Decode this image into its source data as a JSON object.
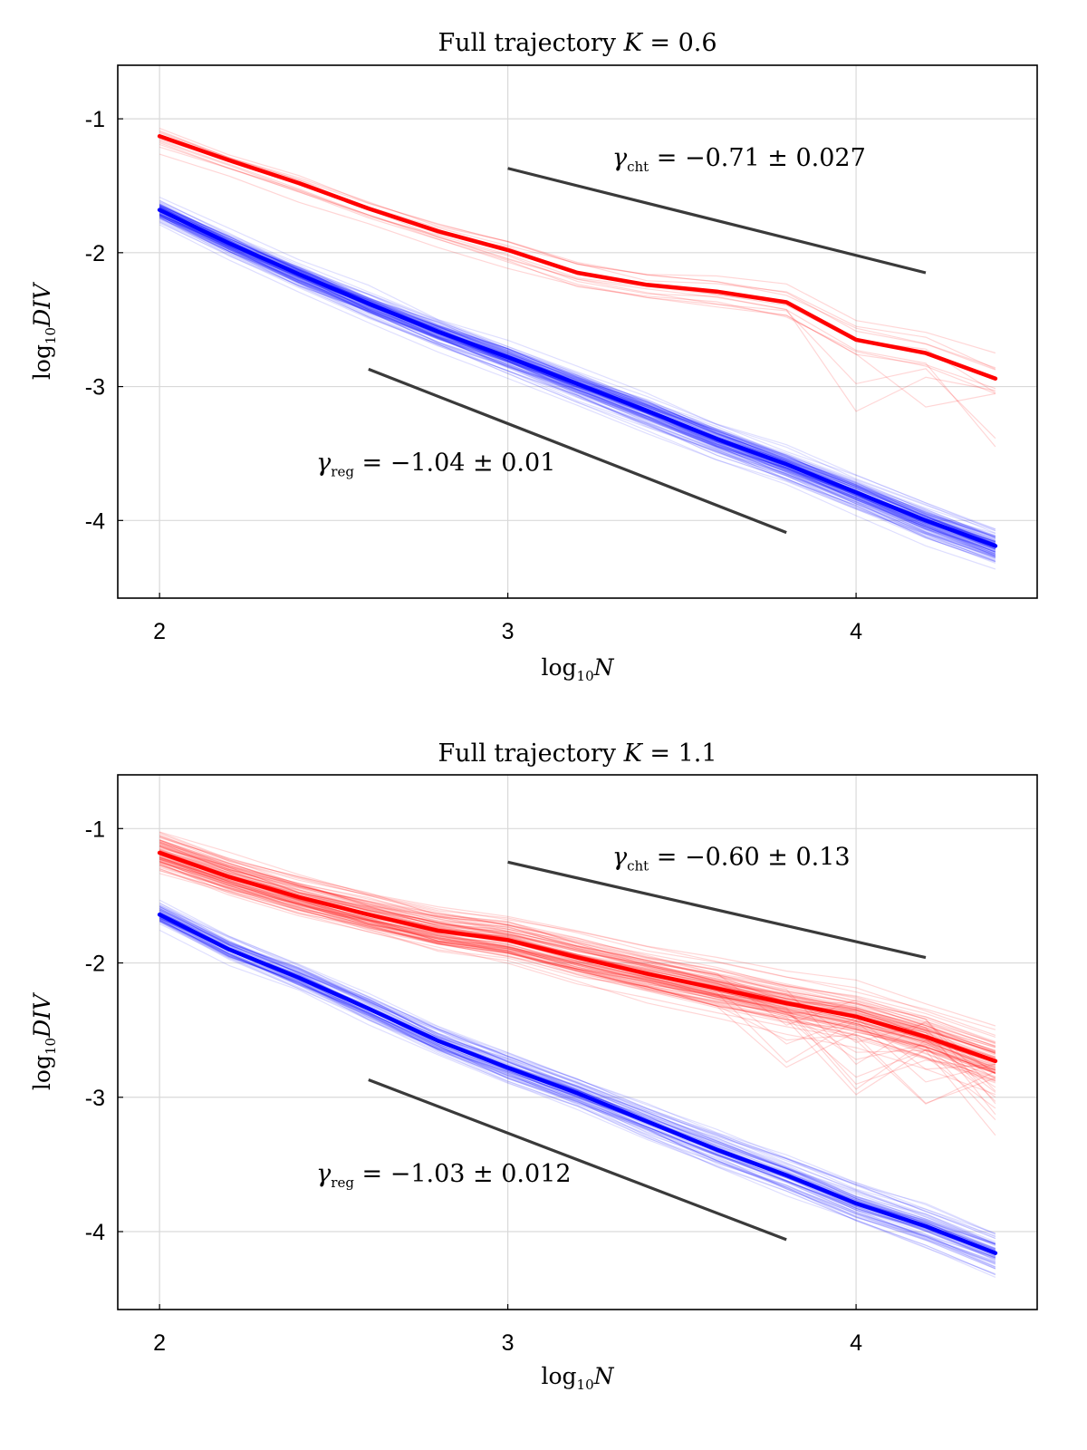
{
  "chart_data": [
    {
      "type": "line",
      "title_text": "Full trajectory ",
      "title_var": "K",
      "title_eq": " = ",
      "title_value": "0.6",
      "xlabel": {
        "prefix": "log",
        "sub": "10",
        "var": "N"
      },
      "ylabel": {
        "prefix": "log",
        "sub": "10",
        "var": "DIV"
      },
      "xlim": [
        1.88,
        4.52
      ],
      "ylim": [
        -4.58,
        -0.6
      ],
      "xticks": [
        2,
        3,
        4
      ],
      "xtick_labels": [
        "2",
        "3",
        "4"
      ],
      "yticks": [
        -1,
        -2,
        -3,
        -4
      ],
      "ytick_labels": [
        "-1",
        "-2",
        "-3",
        "-4"
      ],
      "grid": true,
      "x": [
        2.0,
        2.2,
        2.4,
        2.6,
        2.8,
        3.0,
        3.2,
        3.4,
        3.6,
        3.8,
        4.0,
        4.2,
        4.4
      ],
      "series": [
        {
          "name": "chaotic mean",
          "color": "#ff0000",
          "values": [
            -1.13,
            -1.31,
            -1.48,
            -1.67,
            -1.84,
            -1.98,
            -2.15,
            -2.24,
            -2.29,
            -2.37,
            -2.65,
            -2.75,
            -2.94
          ]
        },
        {
          "name": "regular mean",
          "color": "#0000ff",
          "values": [
            -1.68,
            -1.93,
            -2.16,
            -2.38,
            -2.59,
            -2.78,
            -2.98,
            -3.18,
            -3.39,
            -3.58,
            -3.79,
            -4.0,
            -4.19
          ]
        }
      ],
      "ensembles": [
        {
          "name": "chaotic trajectories",
          "color": "#ff0000",
          "count": 12,
          "spread": 0.18,
          "mean_ref": 0
        },
        {
          "name": "regular trajectories",
          "color": "#0000ff",
          "count": 110,
          "spread": 0.12,
          "mean_ref": 1
        }
      ],
      "reference_lines": [
        {
          "name": "chaotic slope reference",
          "x": [
            3.0,
            4.2
          ],
          "y": [
            -1.37,
            -2.15
          ]
        },
        {
          "name": "regular slope reference",
          "x": [
            2.6,
            3.8
          ],
          "y": [
            -2.87,
            -4.09
          ]
        }
      ],
      "annotations": [
        {
          "name": "gamma-cht",
          "symbol": "γ",
          "sub": "cht",
          "text": " = −0.71 ± 0.027",
          "anchor": [
            3.3,
            -1.35
          ]
        },
        {
          "name": "gamma-reg",
          "symbol": "γ",
          "sub": "reg",
          "text": " = −1.04 ± 0.01",
          "anchor": [
            2.45,
            -3.63
          ]
        }
      ]
    },
    {
      "type": "line",
      "title_text": "Full trajectory ",
      "title_var": "K",
      "title_eq": " = ",
      "title_value": "1.1",
      "xlabel": {
        "prefix": "log",
        "sub": "10",
        "var": "N"
      },
      "ylabel": {
        "prefix": "log",
        "sub": "10",
        "var": "DIV"
      },
      "xlim": [
        1.88,
        4.52
      ],
      "ylim": [
        -4.58,
        -0.6
      ],
      "xticks": [
        2,
        3,
        4
      ],
      "xtick_labels": [
        "2",
        "3",
        "4"
      ],
      "yticks": [
        -1,
        -2,
        -3,
        -4
      ],
      "ytick_labels": [
        "-1",
        "-2",
        "-3",
        "-4"
      ],
      "grid": true,
      "x": [
        2.0,
        2.2,
        2.4,
        2.6,
        2.8,
        3.0,
        3.2,
        3.4,
        3.6,
        3.8,
        4.0,
        4.2,
        4.4
      ],
      "series": [
        {
          "name": "chaotic mean",
          "color": "#ff0000",
          "values": [
            -1.18,
            -1.36,
            -1.51,
            -1.64,
            -1.76,
            -1.83,
            -1.96,
            -2.08,
            -2.19,
            -2.3,
            -2.4,
            -2.55,
            -2.73
          ]
        },
        {
          "name": "regular mean",
          "color": "#0000ff",
          "values": [
            -1.64,
            -1.9,
            -2.11,
            -2.34,
            -2.58,
            -2.78,
            -2.97,
            -3.18,
            -3.39,
            -3.58,
            -3.79,
            -3.96,
            -4.16
          ]
        }
      ],
      "ensembles": [
        {
          "name": "chaotic trajectories",
          "color": "#ff0000",
          "count": 90,
          "spread": 0.22,
          "mean_ref": 0
        },
        {
          "name": "regular trajectories",
          "color": "#0000ff",
          "count": 70,
          "spread": 0.12,
          "mean_ref": 1
        }
      ],
      "reference_lines": [
        {
          "name": "chaotic slope reference",
          "x": [
            3.0,
            4.2
          ],
          "y": [
            -1.25,
            -1.96
          ]
        },
        {
          "name": "regular slope reference",
          "x": [
            2.6,
            3.8
          ],
          "y": [
            -2.87,
            -4.06
          ]
        }
      ],
      "annotations": [
        {
          "name": "gamma-cht",
          "symbol": "γ",
          "sub": "cht",
          "text": " = −0.60 ± 0.13",
          "anchor": [
            3.3,
            -1.27
          ]
        },
        {
          "name": "gamma-reg",
          "symbol": "γ",
          "sub": "reg",
          "text": " = −1.03 ± 0.012",
          "anchor": [
            2.45,
            -3.63
          ]
        }
      ]
    }
  ]
}
